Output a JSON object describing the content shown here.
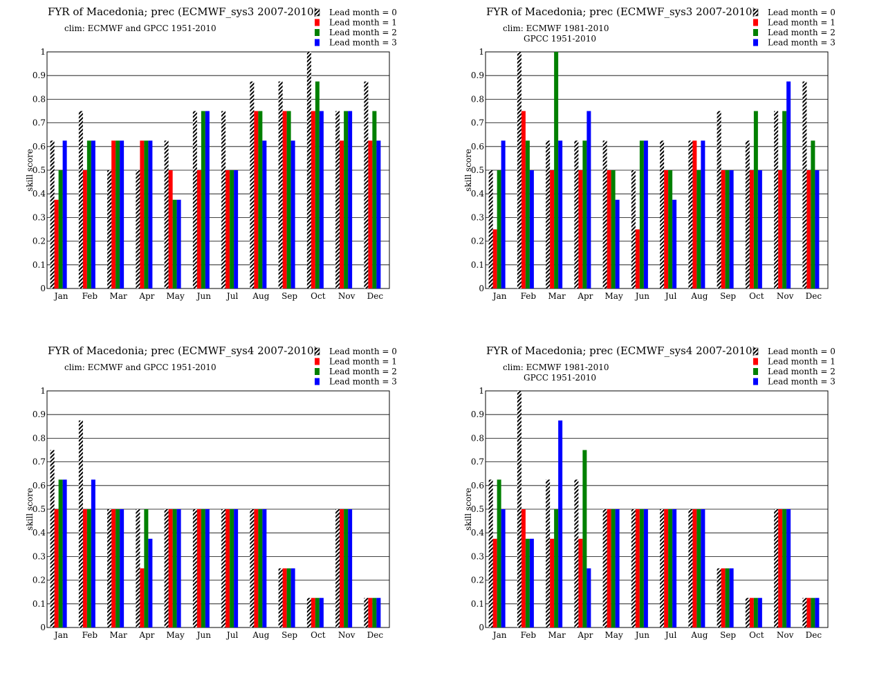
{
  "colors": {
    "lead0_stripe": "#000000",
    "lead1": "#ff0000",
    "lead2": "#008000",
    "lead3": "#0000ff",
    "grid": "#000000"
  },
  "chart_data": [
    {
      "type": "bar",
      "title": "FYR of Macedonia; prec (ECMWF_sys3 2007-2010)",
      "subtitle_lines": [
        "clim: ECMWF and GPCC 1951-2010"
      ],
      "ylabel": "skill  score",
      "ylim": [
        0,
        1
      ],
      "yticks": [
        "0",
        "0.1",
        "0.2",
        "0.3",
        "0.4",
        "0.5",
        "0.6",
        "0.7",
        "0.8",
        "0.9",
        "1"
      ],
      "categories": [
        "Jan",
        "Feb",
        "Mar",
        "Apr",
        "May",
        "Jun",
        "Jul",
        "Aug",
        "Sep",
        "Oct",
        "Nov",
        "Dec"
      ],
      "grid": true,
      "legend_position": "top-right",
      "series": [
        {
          "name": "Lead month = 0",
          "values": [
            0.625,
            0.75,
            0.5,
            0.5,
            0.625,
            0.75,
            0.75,
            0.875,
            0.875,
            1.0,
            0.75,
            0.875
          ]
        },
        {
          "name": "Lead month = 1",
          "values": [
            0.375,
            0.5,
            0.625,
            0.625,
            0.5,
            0.5,
            0.5,
            0.75,
            0.75,
            0.75,
            0.625,
            0.625
          ]
        },
        {
          "name": "Lead month = 2",
          "values": [
            0.5,
            0.625,
            0.625,
            0.625,
            0.375,
            0.75,
            0.5,
            0.75,
            0.75,
            0.875,
            0.75,
            0.75
          ]
        },
        {
          "name": "Lead month = 3",
          "values": [
            0.625,
            0.625,
            0.625,
            0.625,
            0.375,
            0.75,
            0.5,
            0.625,
            0.625,
            0.75,
            0.75,
            0.625
          ]
        }
      ]
    },
    {
      "type": "bar",
      "title": "FYR of Macedonia; prec (ECMWF_sys3 2007-2010)",
      "subtitle_lines": [
        "clim: ECMWF 1981-2010",
        "GPCC 1951-2010"
      ],
      "ylabel": "skill  score",
      "ylim": [
        0,
        1
      ],
      "yticks": [
        "0",
        "0.1",
        "0.2",
        "0.3",
        "0.4",
        "0.5",
        "0.6",
        "0.7",
        "0.8",
        "0.9",
        "1"
      ],
      "categories": [
        "Jan",
        "Feb",
        "Mar",
        "Apr",
        "May",
        "Jun",
        "Jul",
        "Aug",
        "Sep",
        "Oct",
        "Nov",
        "Dec"
      ],
      "grid": true,
      "legend_position": "top-right",
      "series": [
        {
          "name": "Lead month = 0",
          "values": [
            0.5,
            1.0,
            0.625,
            0.625,
            0.625,
            0.5,
            0.625,
            0.625,
            0.75,
            0.625,
            0.75,
            0.875
          ]
        },
        {
          "name": "Lead month = 1",
          "values": [
            0.25,
            0.75,
            0.5,
            0.5,
            0.5,
            0.25,
            0.5,
            0.625,
            0.5,
            0.5,
            0.5,
            0.5
          ]
        },
        {
          "name": "Lead month = 2",
          "values": [
            0.5,
            0.625,
            1.0,
            0.625,
            0.5,
            0.625,
            0.5,
            0.5,
            0.5,
            0.75,
            0.75,
            0.625
          ]
        },
        {
          "name": "Lead month = 3",
          "values": [
            0.625,
            0.5,
            0.625,
            0.75,
            0.375,
            0.625,
            0.375,
            0.625,
            0.5,
            0.5,
            0.875,
            0.5
          ]
        }
      ]
    },
    {
      "type": "bar",
      "title": "FYR of Macedonia; prec (ECMWF_sys4 2007-2010)",
      "subtitle_lines": [
        "clim: ECMWF and GPCC 1951-2010"
      ],
      "ylabel": "skill  score",
      "ylim": [
        0,
        1
      ],
      "yticks": [
        "0",
        "0.1",
        "0.2",
        "0.3",
        "0.4",
        "0.5",
        "0.6",
        "0.7",
        "0.8",
        "0.9",
        "1"
      ],
      "categories": [
        "Jan",
        "Feb",
        "Mar",
        "Apr",
        "May",
        "Jun",
        "Jul",
        "Aug",
        "Sep",
        "Oct",
        "Nov",
        "Dec"
      ],
      "grid": true,
      "legend_position": "top-right",
      "series": [
        {
          "name": "Lead month = 0",
          "values": [
            0.75,
            0.875,
            0.5,
            0.5,
            0.5,
            0.5,
            0.5,
            0.5,
            0.25,
            0.125,
            0.5,
            0.125
          ]
        },
        {
          "name": "Lead month = 1",
          "values": [
            0.5,
            0.5,
            0.5,
            0.25,
            0.5,
            0.5,
            0.5,
            0.5,
            0.25,
            0.125,
            0.5,
            0.125
          ]
        },
        {
          "name": "Lead month = 2",
          "values": [
            0.625,
            0.5,
            0.5,
            0.5,
            0.5,
            0.5,
            0.5,
            0.5,
            0.25,
            0.125,
            0.5,
            0.125
          ]
        },
        {
          "name": "Lead month = 3",
          "values": [
            0.625,
            0.625,
            0.5,
            0.375,
            0.5,
            0.5,
            0.5,
            0.5,
            0.25,
            0.125,
            0.5,
            0.125
          ]
        }
      ]
    },
    {
      "type": "bar",
      "title": "FYR of Macedonia; prec (ECMWF_sys4 2007-2010)",
      "subtitle_lines": [
        "clim: ECMWF 1981-2010",
        "GPCC 1951-2010"
      ],
      "ylabel": "skill  score",
      "ylim": [
        0,
        1
      ],
      "yticks": [
        "0",
        "0.1",
        "0.2",
        "0.3",
        "0.4",
        "0.5",
        "0.6",
        "0.7",
        "0.8",
        "0.9",
        "1"
      ],
      "categories": [
        "Jan",
        "Feb",
        "Mar",
        "Apr",
        "May",
        "Jun",
        "Jul",
        "Aug",
        "Sep",
        "Oct",
        "Nov",
        "Dec"
      ],
      "grid": true,
      "legend_position": "top-right",
      "series": [
        {
          "name": "Lead month = 0",
          "values": [
            0.625,
            1.0,
            0.625,
            0.625,
            0.5,
            0.5,
            0.5,
            0.5,
            0.25,
            0.125,
            0.5,
            0.125
          ]
        },
        {
          "name": "Lead month = 1",
          "values": [
            0.375,
            0.5,
            0.375,
            0.375,
            0.5,
            0.5,
            0.5,
            0.5,
            0.25,
            0.125,
            0.5,
            0.125
          ]
        },
        {
          "name": "Lead month = 2",
          "values": [
            0.625,
            0.375,
            0.5,
            0.75,
            0.5,
            0.5,
            0.5,
            0.5,
            0.25,
            0.125,
            0.5,
            0.125
          ]
        },
        {
          "name": "Lead month = 3",
          "values": [
            0.5,
            0.375,
            0.875,
            0.25,
            0.5,
            0.5,
            0.5,
            0.5,
            0.25,
            0.125,
            0.5,
            0.125
          ]
        }
      ]
    }
  ]
}
